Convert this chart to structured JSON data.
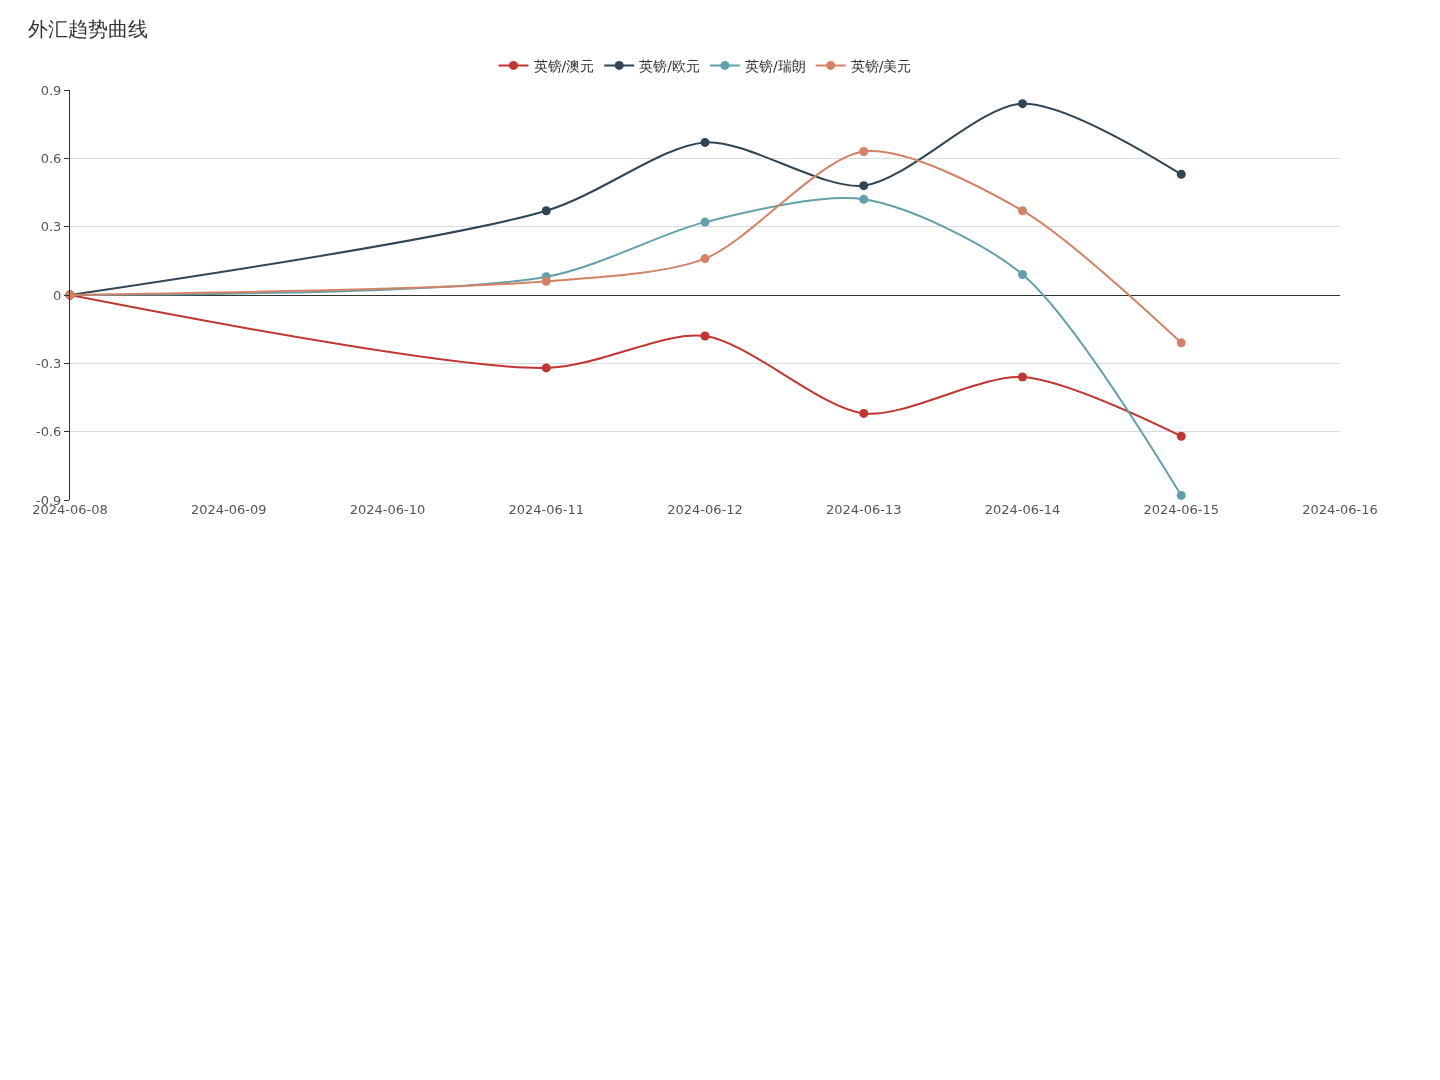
{
  "chart_data": {
    "type": "line",
    "title": "外汇趋势曲线",
    "x": [
      "2024-06-08",
      "2024-06-11",
      "2024-06-12",
      "2024-06-13",
      "2024-06-14",
      "2024-06-15"
    ],
    "series": [
      {
        "name": "英镑/澳元",
        "color": "#c23531",
        "values": [
          0,
          -0.32,
          -0.18,
          -0.52,
          -0.36,
          -0.62
        ]
      },
      {
        "name": "英镑/欧元",
        "color": "#2f4554",
        "values": [
          0,
          0.37,
          0.67,
          0.48,
          0.84,
          0.53
        ]
      },
      {
        "name": "英镑/瑞朗",
        "color": "#61a0a8",
        "values": [
          0,
          0.08,
          0.32,
          0.42,
          0.09,
          -0.88
        ]
      },
      {
        "name": "英镑/美元",
        "color": "#d48265",
        "values": [
          0,
          0.06,
          0.16,
          0.63,
          0.37,
          -0.21
        ]
      }
    ],
    "xlim": [
      "2024-06-08",
      "2024-06-16"
    ],
    "xticks": [
      "2024-06-08",
      "2024-06-09",
      "2024-06-10",
      "2024-06-11",
      "2024-06-12",
      "2024-06-13",
      "2024-06-14",
      "2024-06-15",
      "2024-06-16"
    ],
    "ylim": [
      -0.9,
      0.9
    ],
    "yticks": [
      -0.9,
      -0.6,
      -0.3,
      0,
      0.3,
      0.6,
      0.9
    ],
    "grid": "y",
    "legend": "top",
    "marker": "circle",
    "line_style": "solid"
  }
}
